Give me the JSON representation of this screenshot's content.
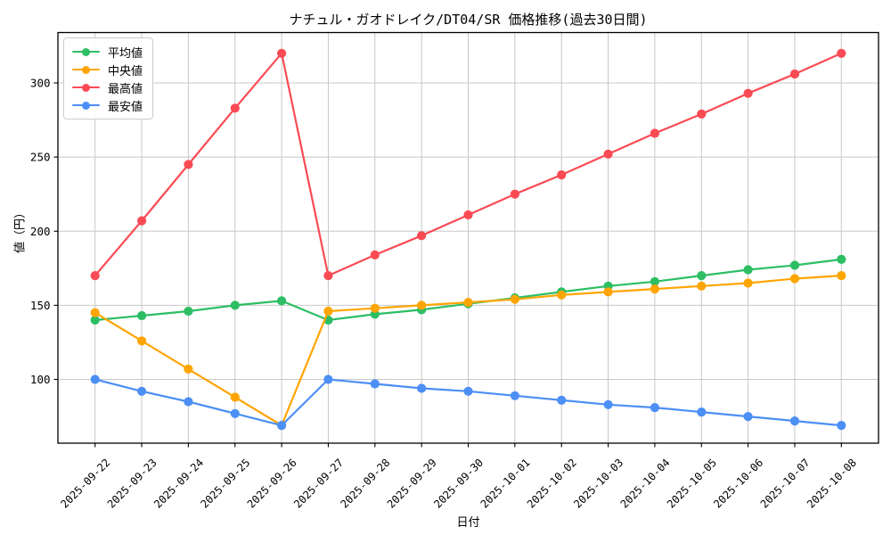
{
  "chart_data": {
    "type": "line",
    "title": "ナチュル・ガオドレイク/DT04/SR 価格推移(過去30日間)",
    "xlabel": "日付",
    "ylabel": "値（円）",
    "grid": true,
    "legend_position": "upper left",
    "ylim": [
      57,
      334
    ],
    "yticks": [
      100,
      150,
      200,
      250,
      300
    ],
    "x": [
      "2025-09-22",
      "2025-09-23",
      "2025-09-24",
      "2025-09-25",
      "2025-09-26",
      "2025-09-27",
      "2025-09-28",
      "2025-09-29",
      "2025-09-30",
      "2025-10-01",
      "2025-10-02",
      "2025-10-03",
      "2025-10-04",
      "2025-10-05",
      "2025-10-06",
      "2025-10-07",
      "2025-10-08"
    ],
    "series": [
      {
        "key": "average",
        "name": "平均値",
        "color": "#2DBE64",
        "values": [
          140,
          143,
          146,
          150,
          153,
          140,
          144,
          147,
          151,
          155,
          159,
          163,
          166,
          170,
          174,
          177,
          181
        ]
      },
      {
        "key": "median",
        "name": "中央値",
        "color": "#FFA502",
        "values": [
          145,
          126,
          107,
          88,
          69,
          146,
          148,
          150,
          152,
          154,
          157,
          159,
          161,
          163,
          165,
          168,
          170
        ]
      },
      {
        "key": "max",
        "name": "最高値",
        "color": "#FA4B55",
        "values": [
          170,
          207,
          245,
          283,
          320,
          170,
          184,
          197,
          211,
          225,
          238,
          252,
          266,
          279,
          293,
          306,
          320
        ]
      },
      {
        "key": "min",
        "name": "最安値",
        "color": "#4C8FF5",
        "values": [
          100,
          92,
          85,
          77,
          69,
          100,
          97,
          94,
          92,
          89,
          86,
          83,
          81,
          78,
          75,
          72,
          69
        ]
      }
    ],
    "colors": {
      "grid": "#c8c8c8",
      "spine": "#000000",
      "background": "#ffffff"
    }
  }
}
